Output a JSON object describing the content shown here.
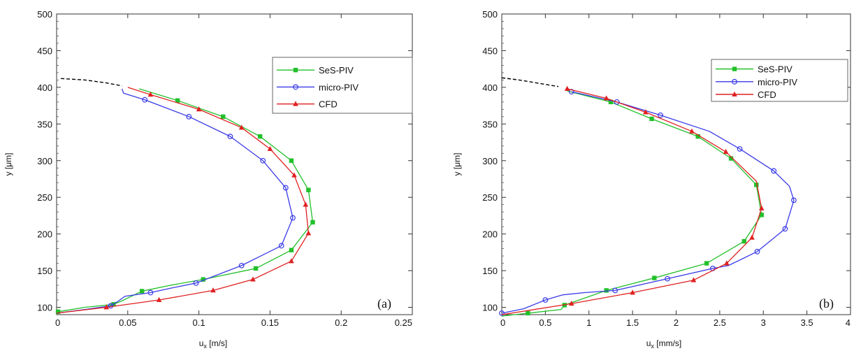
{
  "chart_data": [
    {
      "type": "line",
      "panel_label": "(a)",
      "xlabel_main": "u",
      "xlabel_sub": "x",
      "xlabel_unit": " [m/s]",
      "ylabel": "y [μm]",
      "xlim": [
        0,
        0.25
      ],
      "ylim": [
        90,
        500
      ],
      "xticks": [
        0,
        0.05,
        0.1,
        0.15,
        0.2,
        0.25
      ],
      "xtick_labels": [
        "0",
        "0.05",
        "0.1",
        "0.15",
        "0.2",
        "0.25"
      ],
      "yticks": [
        100,
        150,
        200,
        250,
        300,
        350,
        400,
        450,
        500
      ],
      "legend_position": "top-right",
      "extrapolation": {
        "style": "dashed",
        "color": "#000000",
        "points": [
          [
            0.003,
            412
          ],
          [
            0.02,
            410
          ],
          [
            0.035,
            406
          ],
          [
            0.046,
            402
          ]
        ]
      },
      "series": [
        {
          "name": "SeS-PIV",
          "color": "#22c02a",
          "marker": "square",
          "points": [
            [
              0.001,
              94
            ],
            [
              0.02,
              100
            ],
            [
              0.04,
              104
            ],
            [
              0.045,
              108
            ],
            [
              0.06,
              122
            ],
            [
              0.08,
              130
            ],
            [
              0.103,
              138
            ],
            [
              0.14,
              153
            ],
            [
              0.165,
              178
            ],
            [
              0.18,
              216
            ],
            [
              0.177,
              260
            ],
            [
              0.165,
              300
            ],
            [
              0.143,
              333
            ],
            [
              0.117,
              360
            ],
            [
              0.085,
              382
            ],
            [
              0.058,
              398
            ]
          ],
          "marker_points": [
            [
              0.001,
              94
            ],
            [
              0.04,
              104
            ],
            [
              0.06,
              122
            ],
            [
              0.103,
              138
            ],
            [
              0.14,
              153
            ],
            [
              0.165,
              178
            ],
            [
              0.18,
              216
            ],
            [
              0.177,
              260
            ],
            [
              0.165,
              300
            ],
            [
              0.143,
              333
            ],
            [
              0.117,
              360
            ],
            [
              0.085,
              382
            ]
          ]
        },
        {
          "name": "micro-PIV",
          "color": "#3a3ae8",
          "marker": "circle",
          "points": [
            [
              0,
              92
            ],
            [
              0.02,
              97
            ],
            [
              0.038,
              102
            ],
            [
              0.043,
              108
            ],
            [
              0.048,
              115
            ],
            [
              0.066,
              120
            ],
            [
              0.08,
              126
            ],
            [
              0.098,
              133
            ],
            [
              0.13,
              157
            ],
            [
              0.158,
              184
            ],
            [
              0.166,
              222
            ],
            [
              0.161,
              263
            ],
            [
              0.145,
              300
            ],
            [
              0.122,
              333
            ],
            [
              0.093,
              360
            ],
            [
              0.062,
              383
            ],
            [
              0.047,
              392
            ],
            [
              0.046,
              398
            ]
          ],
          "marker_points": [
            [
              0.038,
              102
            ],
            [
              0.066,
              120
            ],
            [
              0.098,
              133
            ],
            [
              0.13,
              157
            ],
            [
              0.158,
              184
            ],
            [
              0.166,
              222
            ],
            [
              0.161,
              263
            ],
            [
              0.145,
              300
            ],
            [
              0.122,
              333
            ],
            [
              0.093,
              360
            ],
            [
              0.062,
              383
            ]
          ]
        },
        {
          "name": "CFD",
          "color": "#e02020",
          "marker": "triangle",
          "points": [
            [
              0,
              92
            ],
            [
              0.035,
              100
            ],
            [
              0.072,
              110
            ],
            [
              0.11,
              123
            ],
            [
              0.138,
              138
            ],
            [
              0.165,
              163
            ],
            [
              0.177,
              201
            ],
            [
              0.175,
              240
            ],
            [
              0.167,
              280
            ],
            [
              0.15,
              316
            ],
            [
              0.13,
              345
            ],
            [
              0.1,
              370
            ],
            [
              0.066,
              390
            ],
            [
              0.05,
              400
            ]
          ],
          "marker_points": [
            [
              0.035,
              100
            ],
            [
              0.072,
              110
            ],
            [
              0.11,
              123
            ],
            [
              0.138,
              138
            ],
            [
              0.165,
              163
            ],
            [
              0.177,
              201
            ],
            [
              0.175,
              240
            ],
            [
              0.167,
              280
            ],
            [
              0.15,
              316
            ],
            [
              0.13,
              345
            ],
            [
              0.1,
              370
            ],
            [
              0.066,
              390
            ]
          ]
        }
      ]
    },
    {
      "type": "line",
      "panel_label": "(b)",
      "xlabel_main": "u",
      "xlabel_sub": "x",
      "xlabel_unit": " [mm/s]",
      "ylabel": "y [μm]",
      "xlim": [
        0,
        4
      ],
      "ylim": [
        90,
        500
      ],
      "xticks": [
        0,
        0.5,
        1,
        1.5,
        2,
        2.5,
        3,
        3.5,
        4
      ],
      "xtick_labels": [
        "0",
        "0.5",
        "1",
        "1.5",
        "2",
        "2.5",
        "3",
        "3.5",
        "4"
      ],
      "yticks": [
        100,
        150,
        200,
        250,
        300,
        350,
        400,
        450,
        500
      ],
      "legend_position": "top-right",
      "extrapolation": {
        "style": "dashed",
        "color": "#000000",
        "points": [
          [
            0.0,
            413
          ],
          [
            0.2,
            410
          ],
          [
            0.45,
            405
          ],
          [
            0.65,
            401
          ]
        ]
      },
      "series": [
        {
          "name": "SeS-PIV",
          "color": "#22c02a",
          "marker": "square",
          "points": [
            [
              0,
              88
            ],
            [
              0.3,
              92
            ],
            [
              0.68,
              97
            ],
            [
              0.72,
              103
            ],
            [
              1.2,
              123
            ],
            [
              1.75,
              140
            ],
            [
              2.35,
              160
            ],
            [
              2.78,
              190
            ],
            [
              2.98,
              226
            ],
            [
              2.92,
              267
            ],
            [
              2.63,
              303
            ],
            [
              2.25,
              333
            ],
            [
              1.72,
              357
            ],
            [
              1.25,
              380
            ],
            [
              0.75,
              395
            ]
          ],
          "marker_points": [
            [
              0.3,
              92
            ],
            [
              0.72,
              103
            ],
            [
              1.2,
              123
            ],
            [
              1.75,
              140
            ],
            [
              2.35,
              160
            ],
            [
              2.78,
              190
            ],
            [
              2.98,
              226
            ],
            [
              2.92,
              267
            ],
            [
              2.63,
              303
            ],
            [
              2.25,
              333
            ],
            [
              1.72,
              357
            ],
            [
              1.25,
              380
            ]
          ]
        },
        {
          "name": "micro-PIV",
          "color": "#3a3ae8",
          "marker": "circle",
          "points": [
            [
              0,
              92
            ],
            [
              0.25,
              98
            ],
            [
              0.5,
              110
            ],
            [
              0.7,
              117
            ],
            [
              0.95,
              120
            ],
            [
              1.3,
              123
            ],
            [
              1.9,
              139
            ],
            [
              2.42,
              153
            ],
            [
              2.6,
              157
            ],
            [
              2.93,
              176
            ],
            [
              3.25,
              207
            ],
            [
              3.35,
              246
            ],
            [
              3.3,
              265
            ],
            [
              3.12,
              286
            ],
            [
              2.73,
              316
            ],
            [
              2.38,
              340
            ],
            [
              1.82,
              362
            ],
            [
              1.32,
              380
            ],
            [
              0.8,
              394
            ]
          ],
          "marker_points": [
            [
              0,
              92
            ],
            [
              0.5,
              110
            ],
            [
              1.3,
              123
            ],
            [
              1.9,
              139
            ],
            [
              2.42,
              153
            ],
            [
              2.93,
              176
            ],
            [
              3.25,
              207
            ],
            [
              3.35,
              246
            ],
            [
              3.12,
              286
            ],
            [
              2.73,
              316
            ],
            [
              1.82,
              362
            ],
            [
              1.32,
              380
            ],
            [
              0.8,
              394
            ]
          ]
        },
        {
          "name": "CFD",
          "color": "#e02020",
          "marker": "triangle",
          "points": [
            [
              0,
              90
            ],
            [
              0.8,
              105
            ],
            [
              1.5,
              120
            ],
            [
              2.2,
              137
            ],
            [
              2.58,
              160
            ],
            [
              2.87,
              195
            ],
            [
              2.98,
              235
            ],
            [
              2.92,
              272
            ],
            [
              2.57,
              312
            ],
            [
              2.18,
              340
            ],
            [
              1.65,
              366
            ],
            [
              1.2,
              385
            ],
            [
              0.75,
              398
            ]
          ],
          "marker_points": [
            [
              0.8,
              105
            ],
            [
              1.5,
              120
            ],
            [
              2.2,
              137
            ],
            [
              2.58,
              160
            ],
            [
              2.87,
              195
            ],
            [
              2.98,
              235
            ],
            [
              2.57,
              312
            ],
            [
              2.18,
              340
            ],
            [
              1.65,
              366
            ],
            [
              1.2,
              385
            ],
            [
              0.75,
              398
            ]
          ]
        }
      ]
    }
  ]
}
